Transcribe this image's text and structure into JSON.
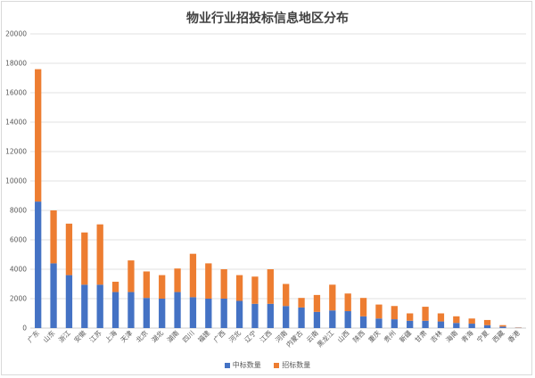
{
  "colors": {
    "win": "#4472C4",
    "bid": "#ED7D31",
    "grid": "#d9d9d9",
    "axis": "#bfbfbf"
  },
  "chart_data": {
    "type": "bar",
    "stacked": true,
    "title": "物业行业招投标信息地区分布",
    "xlabel": "",
    "ylabel": "",
    "ylim": [
      0,
      20000
    ],
    "yticks": [
      0,
      2000,
      4000,
      6000,
      8000,
      10000,
      12000,
      14000,
      16000,
      18000,
      20000
    ],
    "grid": true,
    "legend_position": "bottom",
    "categories": [
      "广东",
      "山东",
      "浙江",
      "安徽",
      "江苏",
      "上海",
      "天津",
      "北京",
      "湖北",
      "湖南",
      "四川",
      "福建",
      "广西",
      "河北",
      "辽宁",
      "江西",
      "河南",
      "内蒙古",
      "云南",
      "黑龙江",
      "山西",
      "陕西",
      "重庆",
      "贵州",
      "新疆",
      "甘肃",
      "吉林",
      "海南",
      "青海",
      "宁夏",
      "西藏",
      "香港"
    ],
    "series": [
      {
        "name": "中标数量",
        "color": "#4472C4",
        "values": [
          8600,
          4400,
          3600,
          2950,
          2950,
          2450,
          2450,
          2050,
          2000,
          2450,
          2100,
          2000,
          2000,
          1850,
          1650,
          1650,
          1500,
          1400,
          1100,
          1200,
          1150,
          800,
          650,
          600,
          500,
          500,
          450,
          350,
          300,
          200,
          100,
          20
        ]
      },
      {
        "name": "招标数量",
        "color": "#ED7D31",
        "values": [
          9000,
          3600,
          3500,
          3550,
          4100,
          700,
          2150,
          1800,
          1600,
          1600,
          2950,
          2400,
          2000,
          1750,
          1850,
          2350,
          1500,
          650,
          1150,
          1750,
          1200,
          1250,
          950,
          900,
          500,
          950,
          550,
          450,
          350,
          350,
          100,
          20
        ]
      }
    ]
  }
}
